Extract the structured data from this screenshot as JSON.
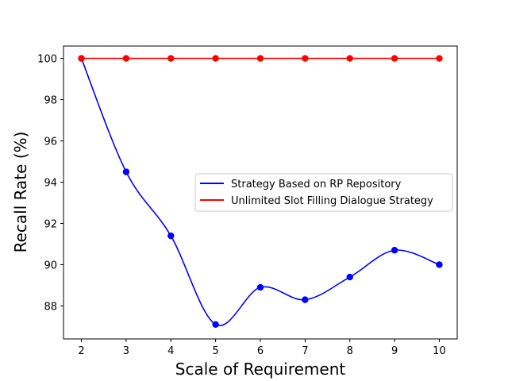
{
  "chart_data": {
    "type": "line",
    "xlabel": "Scale of Requirement",
    "ylabel": "Recall Rate (%)",
    "x": [
      2,
      3,
      4,
      5,
      6,
      7,
      8,
      9,
      10
    ],
    "xticks": [
      "2",
      "3",
      "4",
      "5",
      "6",
      "7",
      "8",
      "9",
      "10"
    ],
    "yticks": [
      "88",
      "90",
      "92",
      "94",
      "96",
      "98",
      "100"
    ],
    "xlim": [
      1.6,
      10.4
    ],
    "ylim": [
      86.4,
      100.6
    ],
    "grid": false,
    "legend_position": "center-right",
    "series": [
      {
        "name": "Strategy Based on RP Repository",
        "color": "#0000ff",
        "smooth": true,
        "values": [
          100.0,
          94.5,
          91.4,
          87.1,
          88.9,
          88.3,
          89.4,
          90.7,
          90.0
        ]
      },
      {
        "name": "Unlimited Slot Filling Dialogue Strategy",
        "color": "#ff0000",
        "smooth": false,
        "values": [
          100,
          100,
          100,
          100,
          100,
          100,
          100,
          100,
          100
        ]
      }
    ]
  }
}
